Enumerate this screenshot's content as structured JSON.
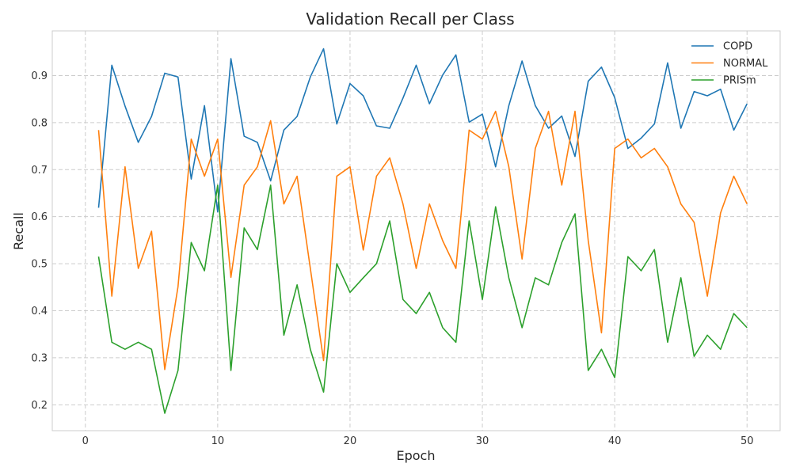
{
  "chart_data": {
    "type": "line",
    "title": "Validation Recall per Class",
    "xlabel": "Epoch",
    "ylabel": "Recall",
    "xlim": [
      -2.5,
      52.5
    ],
    "ylim": [
      0.145,
      0.995
    ],
    "xticks": [
      0,
      10,
      20,
      30,
      40,
      50
    ],
    "yticks": [
      0.2,
      0.3,
      0.4,
      0.5,
      0.6,
      0.7,
      0.8,
      0.9
    ],
    "grid": true,
    "legend_position": "top-right",
    "x": [
      1,
      2,
      3,
      4,
      5,
      6,
      7,
      8,
      9,
      10,
      11,
      12,
      13,
      14,
      15,
      16,
      17,
      18,
      19,
      20,
      21,
      22,
      23,
      24,
      25,
      26,
      27,
      28,
      29,
      30,
      31,
      32,
      33,
      34,
      35,
      36,
      37,
      38,
      39,
      40,
      41,
      42,
      43,
      44,
      45,
      46,
      47,
      48,
      49,
      50
    ],
    "series": [
      {
        "name": "COPD",
        "color": "#1f77b4",
        "values": [
          0.619,
          0.922,
          0.835,
          0.758,
          0.813,
          0.905,
          0.897,
          0.68,
          0.836,
          0.61,
          0.936,
          0.771,
          0.758,
          0.676,
          0.784,
          0.813,
          0.897,
          0.957,
          0.797,
          0.883,
          0.857,
          0.793,
          0.788,
          0.852,
          0.922,
          0.84,
          0.901,
          0.944,
          0.801,
          0.818,
          0.706,
          0.836,
          0.931,
          0.836,
          0.788,
          0.814,
          0.728,
          0.888,
          0.918,
          0.853,
          0.745,
          0.767,
          0.797,
          0.927,
          0.788,
          0.866,
          0.857,
          0.871,
          0.784,
          0.84
        ]
      },
      {
        "name": "NORMAL",
        "color": "#ff7f0e",
        "values": [
          0.784,
          0.431,
          0.706,
          0.49,
          0.569,
          0.275,
          0.451,
          0.765,
          0.686,
          0.765,
          0.471,
          0.667,
          0.706,
          0.804,
          0.627,
          0.686,
          0.49,
          0.294,
          0.686,
          0.706,
          0.529,
          0.686,
          0.725,
          0.627,
          0.49,
          0.627,
          0.549,
          0.49,
          0.784,
          0.765,
          0.824,
          0.706,
          0.51,
          0.745,
          0.824,
          0.667,
          0.824,
          0.549,
          0.353,
          0.745,
          0.765,
          0.725,
          0.745,
          0.706,
          0.627,
          0.588,
          0.431,
          0.608,
          0.686,
          0.627
        ]
      },
      {
        "name": "PRISm",
        "color": "#2ca02c",
        "values": [
          0.515,
          0.333,
          0.318,
          0.333,
          0.318,
          0.182,
          0.273,
          0.545,
          0.485,
          0.667,
          0.273,
          0.576,
          0.53,
          0.667,
          0.348,
          0.455,
          0.318,
          0.227,
          0.5,
          0.439,
          0.47,
          0.5,
          0.591,
          0.424,
          0.394,
          0.439,
          0.364,
          0.333,
          0.591,
          0.424,
          0.621,
          0.47,
          0.364,
          0.47,
          0.455,
          0.545,
          0.606,
          0.273,
          0.318,
          0.258,
          0.515,
          0.485,
          0.53,
          0.333,
          0.47,
          0.303,
          0.348,
          0.318,
          0.394,
          0.364
        ]
      }
    ]
  }
}
